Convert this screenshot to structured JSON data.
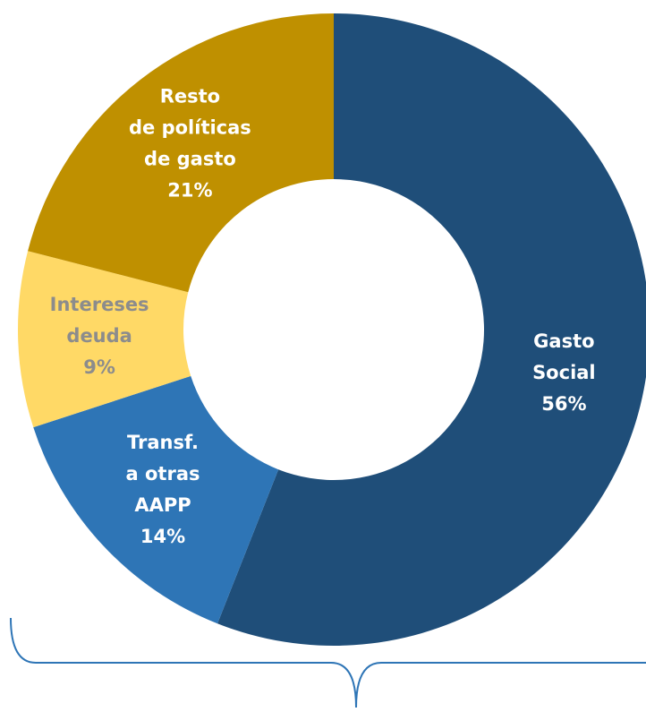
{
  "chart_data": {
    "type": "donut",
    "categories": [
      [
        "Gasto",
        "Social"
      ],
      [
        "Transf.",
        "a otras",
        "AAPP"
      ],
      [
        "Intereses",
        "deuda"
      ],
      [
        "Resto",
        "de políticas",
        "de gasto"
      ]
    ],
    "values": [
      56,
      14,
      9,
      21
    ],
    "value_labels": [
      "56%",
      "14%",
      "9%",
      "21%"
    ],
    "colors": [
      "#1f4e79",
      "#2e75b6",
      "#ffd966",
      "#bf9000"
    ],
    "label_colors": [
      "#ffffff",
      "#ffffff",
      "#8c8c8c",
      "#ffffff"
    ]
  }
}
